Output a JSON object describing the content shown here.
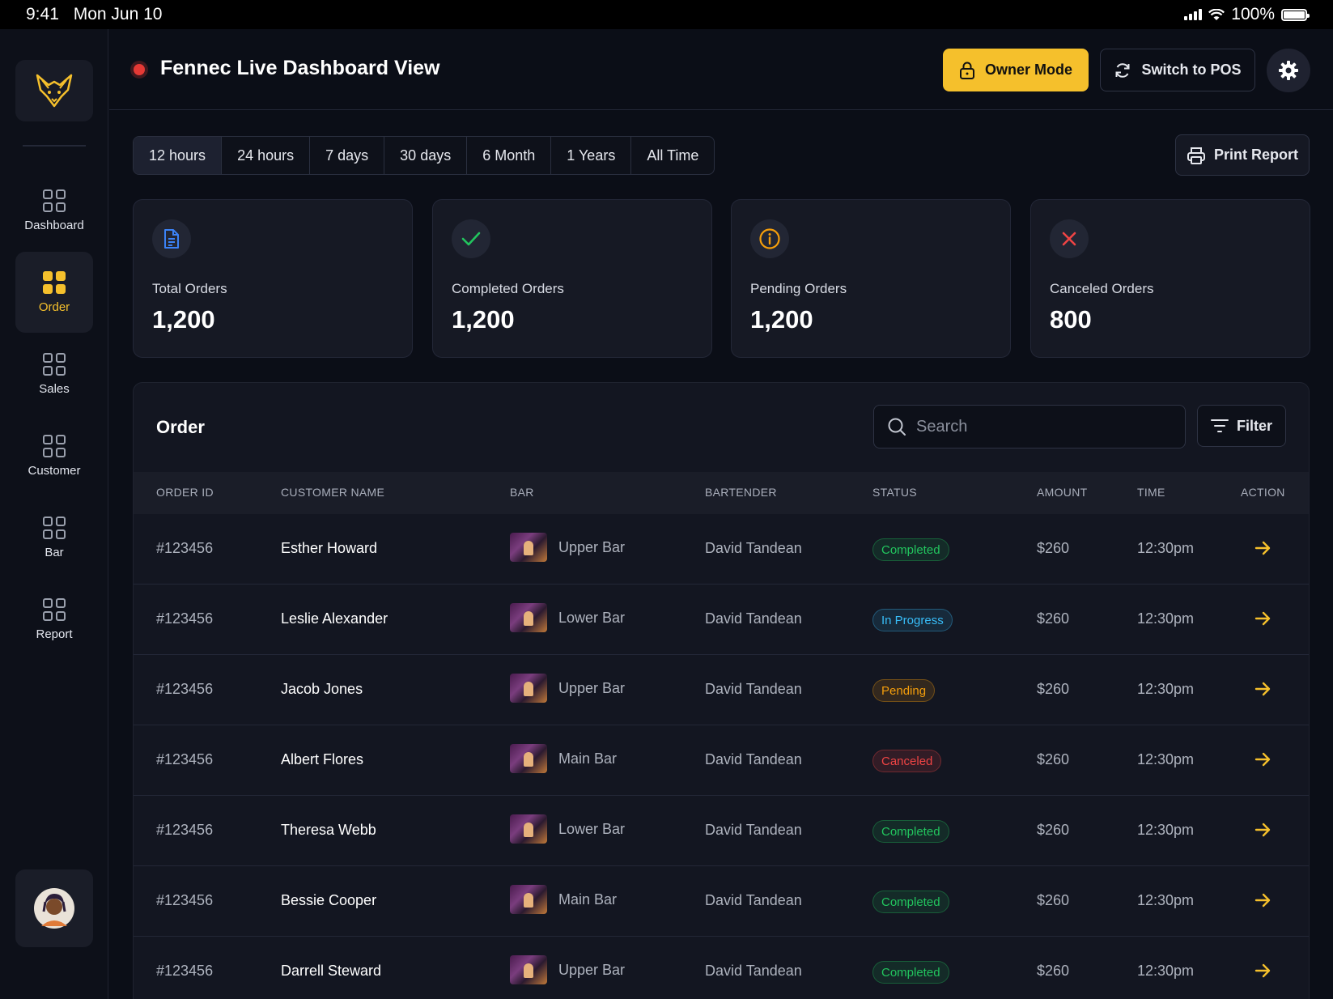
{
  "status_bar": {
    "time": "9:41",
    "date": "Mon Jun 10",
    "battery": "100%"
  },
  "sidebar": {
    "items": [
      {
        "label": "Dashboard",
        "icon": "grid-icon",
        "active": false
      },
      {
        "label": "Order",
        "icon": "grid-icon",
        "active": true
      },
      {
        "label": "Sales",
        "icon": "grid-icon",
        "active": false
      },
      {
        "label": "Customer",
        "icon": "grid-icon",
        "active": false
      },
      {
        "label": "Bar",
        "icon": "grid-icon",
        "active": false
      },
      {
        "label": "Report",
        "icon": "grid-icon",
        "active": false
      }
    ]
  },
  "header": {
    "title": "Fennec Live Dashboard View",
    "owner_mode_label": "Owner Mode",
    "switch_pos_label": "Switch to POS"
  },
  "time_ranges": [
    "12 hours",
    "24 hours",
    "7 days",
    "30 days",
    "6 Month",
    "1 Years",
    "All Time"
  ],
  "active_range": "12 hours",
  "print_label": "Print Report",
  "stats": [
    {
      "label": "Total Orders",
      "value": "1,200",
      "icon": "document-icon",
      "color": "#3b82f6"
    },
    {
      "label": "Completed Orders",
      "value": "1,200",
      "icon": "check-icon",
      "color": "#22c55e"
    },
    {
      "label": "Pending Orders",
      "value": "1,200",
      "icon": "info-icon",
      "color": "#f59e0b"
    },
    {
      "label": "Canceled Orders",
      "value": "800",
      "icon": "close-icon",
      "color": "#ef4444"
    }
  ],
  "orders": {
    "title": "Order",
    "search_placeholder": "Search",
    "filter_label": "Filter",
    "columns": [
      "ORDER ID",
      "CUSTOMER NAME",
      "BAR",
      "BARTENDER",
      "STATUS",
      "AMOUNT",
      "TIME",
      "ACTION"
    ],
    "rows": [
      {
        "id": "#123456",
        "customer": "Esther Howard",
        "bar": "Upper Bar",
        "bartender": "David Tandean",
        "status": "Completed",
        "amount": "$260",
        "time": "12:30pm"
      },
      {
        "id": "#123456",
        "customer": "Leslie Alexander",
        "bar": "Lower Bar",
        "bartender": "David Tandean",
        "status": "In Progress",
        "amount": "$260",
        "time": "12:30pm"
      },
      {
        "id": "#123456",
        "customer": "Jacob Jones",
        "bar": "Upper Bar",
        "bartender": "David Tandean",
        "status": "Pending",
        "amount": "$260",
        "time": "12:30pm"
      },
      {
        "id": "#123456",
        "customer": "Albert Flores",
        "bar": "Main Bar",
        "bartender": "David Tandean",
        "status": "Canceled",
        "amount": "$260",
        "time": "12:30pm"
      },
      {
        "id": "#123456",
        "customer": "Theresa Webb",
        "bar": "Lower Bar",
        "bartender": "David Tandean",
        "status": "Completed",
        "amount": "$260",
        "time": "12:30pm"
      },
      {
        "id": "#123456",
        "customer": "Bessie Cooper",
        "bar": "Main Bar",
        "bartender": "David Tandean",
        "status": "Completed",
        "amount": "$260",
        "time": "12:30pm"
      },
      {
        "id": "#123456",
        "customer": "Darrell Steward",
        "bar": "Upper Bar",
        "bartender": "David Tandean",
        "status": "Completed",
        "amount": "$260",
        "time": "12:30pm"
      }
    ]
  },
  "colors": {
    "accent": "#f5c02c",
    "completed": "#22c55e",
    "in_progress": "#38bdf8",
    "pending": "#f59e0b",
    "canceled": "#ef4444"
  }
}
